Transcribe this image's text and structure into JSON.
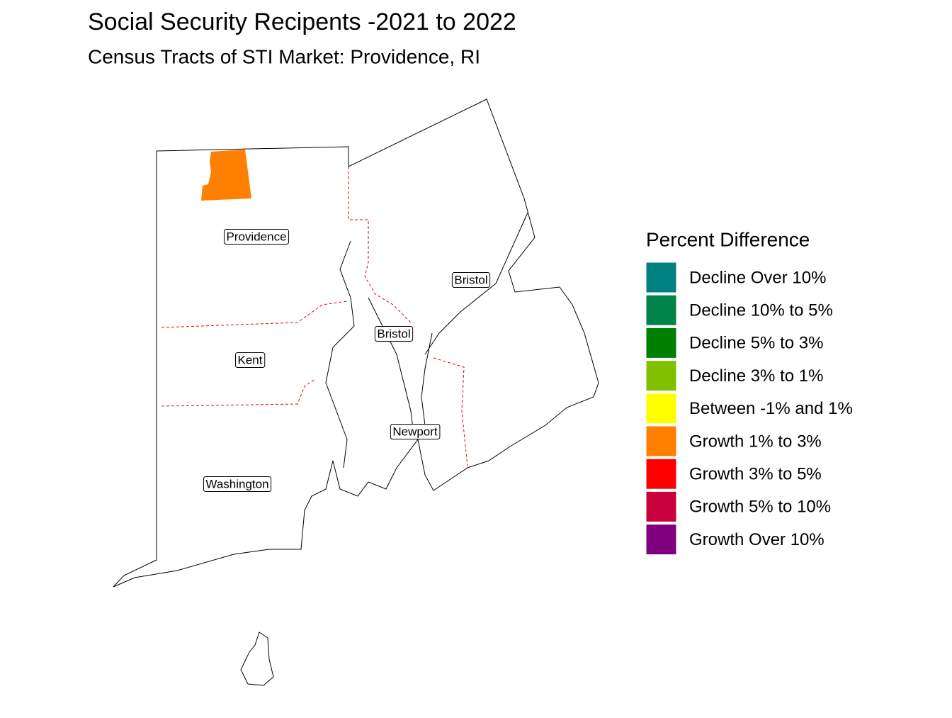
{
  "title": "Social Security Recipents -2021 to 2022",
  "subtitle": "Census Tracts of STI Market: Providence, RI",
  "legend": {
    "title": "Percent Difference",
    "items": [
      {
        "label": "Decline Over 10%",
        "color": "#008080"
      },
      {
        "label": "Decline 10% to 5%",
        "color": "#008348"
      },
      {
        "label": "Decline 5% to 3%",
        "color": "#008000"
      },
      {
        "label": "Decline 3% to 1%",
        "color": "#80c000"
      },
      {
        "label": "Between -1% and 1%",
        "color": "#ffff00"
      },
      {
        "label": "Growth 1% to 3%",
        "color": "#ff8000"
      },
      {
        "label": "Growth 3% to 5%",
        "color": "#ff0000"
      },
      {
        "label": "Growth 5% to 10%",
        "color": "#c8003c"
      },
      {
        "label": "Growth Over 10%",
        "color": "#800080"
      }
    ]
  },
  "counties": [
    {
      "label": "Providence"
    },
    {
      "label": "Bristol"
    },
    {
      "label": "Bristol"
    },
    {
      "label": "Kent"
    },
    {
      "label": "Newport"
    },
    {
      "label": "Washington"
    }
  ]
}
